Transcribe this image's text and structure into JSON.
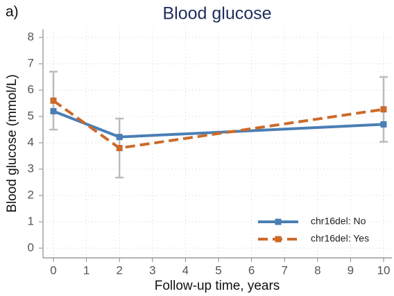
{
  "chart_data": {
    "type": "line",
    "panel_label": "a)",
    "title": "Blood glucose",
    "x_label": "Follow-up time, years",
    "y_label": "Blood glucose (mmol/L)",
    "x": [
      0,
      2,
      10
    ],
    "series": [
      {
        "name": "chr16del: No",
        "color": "#4a7eb4",
        "dash": false,
        "values": [
          5.2,
          4.22,
          4.7
        ]
      },
      {
        "name": "chr16del: Yes",
        "color": "#cc6a2a",
        "dash": true,
        "values": [
          5.6,
          3.8,
          5.27
        ],
        "error": [
          1.1,
          1.12,
          1.23
        ]
      }
    ],
    "xlim": [
      0,
      10
    ],
    "ylim": [
      0,
      8
    ],
    "xticks": [
      0,
      1,
      2,
      3,
      4,
      5,
      6,
      7,
      8,
      9,
      10
    ],
    "yticks": [
      0,
      1,
      2,
      3,
      4,
      5,
      6,
      7,
      8
    ],
    "grid": true,
    "legend": "lower right"
  }
}
